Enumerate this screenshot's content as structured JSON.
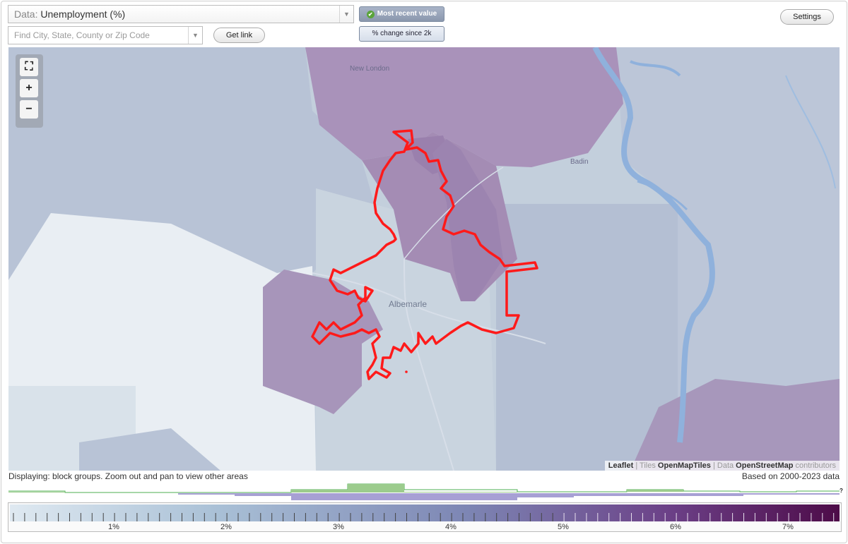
{
  "header": {
    "data_prefix": "Data: ",
    "data_value": "Unemployment (%)",
    "search_placeholder": "Find City, State, County or Zip Code",
    "get_link_label": "Get link",
    "settings_label": "Settings",
    "toggle_active_label": "Most recent value",
    "toggle_inactive_label": "% change since 2k"
  },
  "map": {
    "place_labels": {
      "new_london": "New London",
      "badin": "Badin",
      "albemarle": "Albemarle"
    },
    "attribution": {
      "leaflet": "Leaflet",
      "sep1": " | Tiles ",
      "tiles": "OpenMapTiles",
      "sep2": " | Data ",
      "data": "OpenStreetMap",
      "contributors": " contributors"
    },
    "zoom_in_symbol": "+",
    "zoom_out_symbol": "−",
    "fit_symbol": "⛶",
    "boundary_color": "#ff1a1a"
  },
  "status": {
    "displaying": "Displaying: block groups. Zoom out and pan to view other areas",
    "based_on": "Based on 2000-2023 data",
    "help_marker": "?"
  },
  "legend": {
    "tick_labels": [
      "1%",
      "2%",
      "3%",
      "4%",
      "5%",
      "6%",
      "7%"
    ],
    "color_start": "#dfe9f1",
    "color_mid": "#7d86b4",
    "color_end": "#4d0b48"
  }
}
